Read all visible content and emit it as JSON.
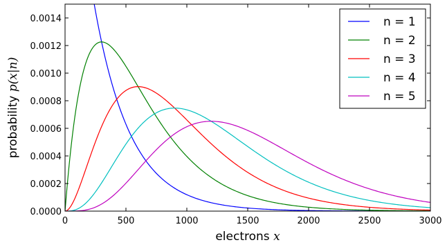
{
  "chart_data": {
    "type": "line",
    "xlabel": {
      "text": "electrons ",
      "var": "x"
    },
    "ylabel": {
      "text": "probability ",
      "var": "p(x|n)"
    },
    "xlim": [
      0,
      3000
    ],
    "ylim": [
      0,
      0.0015
    ],
    "xticks": [
      0,
      500,
      1000,
      1500,
      2000,
      2500,
      3000
    ],
    "xtick_labels": [
      "0",
      "500",
      "1000",
      "1500",
      "2000",
      "2500",
      "3000"
    ],
    "yticks": [
      0,
      0.0002,
      0.0004,
      0.0006,
      0.0008,
      0.001,
      0.0012,
      0.0014
    ],
    "ytick_labels": [
      "0.0000",
      "0.0002",
      "0.0004",
      "0.0006",
      "0.0008",
      "0.0010",
      "0.0012",
      "0.0014"
    ],
    "grid": false,
    "legend_position": "top-right",
    "x_sample_step": 10,
    "series": [
      {
        "name": "n = 1",
        "n": 1,
        "scale": 300,
        "color": "#0000ff"
      },
      {
        "name": "n = 2",
        "n": 2,
        "scale": 300,
        "color": "#008000"
      },
      {
        "name": "n = 3",
        "n": 3,
        "scale": 300,
        "color": "#ff0000"
      },
      {
        "name": "n = 4",
        "n": 4,
        "scale": 300,
        "color": "#00bfbf"
      },
      {
        "name": "n = 5",
        "n": 5,
        "scale": 300,
        "color": "#bf00bf"
      }
    ]
  }
}
